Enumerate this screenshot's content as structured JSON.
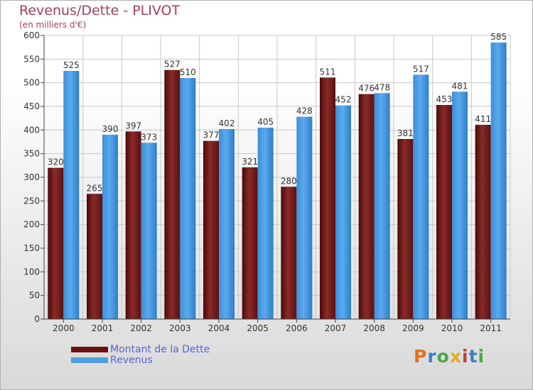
{
  "page": {
    "title": "Revenus/Dette - PLIVOT",
    "subtitle": "(en milliers d'€)",
    "logo": "Proxiti"
  },
  "colors": {
    "dette": "#7a1f1f",
    "revenus": "#4f9fe0",
    "text": "#a04060",
    "legend_text": "#5566dd"
  },
  "chart_data": {
    "type": "bar",
    "title": "Revenus/Dette - PLIVOT",
    "subtitle": "(en milliers d'€)",
    "categories": [
      "2000",
      "2001",
      "2002",
      "2003",
      "2004",
      "2005",
      "2006",
      "2007",
      "2008",
      "2009",
      "2010",
      "2011"
    ],
    "series": [
      {
        "name": "Montant de la Dette",
        "values": [
          320,
          265,
          397,
          527,
          377,
          321,
          280,
          511,
          476,
          381,
          453,
          411
        ]
      },
      {
        "name": "Revenus",
        "values": [
          525,
          390,
          373,
          510,
          402,
          405,
          428,
          452,
          478,
          517,
          481,
          585
        ]
      }
    ],
    "ylim": [
      0,
      600
    ],
    "yticks": [
      0,
      50,
      100,
      150,
      200,
      250,
      300,
      350,
      400,
      450,
      500,
      550,
      600
    ],
    "grid": true,
    "legend": "bottom-left"
  },
  "legend": {
    "items": [
      {
        "label": "Montant de la Dette"
      },
      {
        "label": "Revenus"
      }
    ]
  }
}
